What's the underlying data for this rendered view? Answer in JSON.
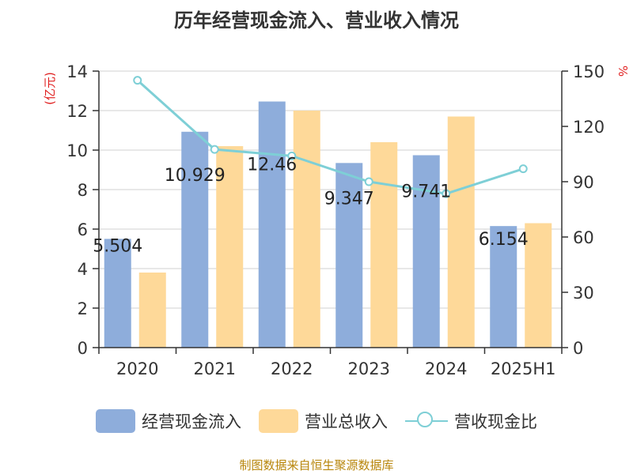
{
  "chart_data": {
    "type": "bar",
    "title": "历年经营现金流入、营业收入情况",
    "categories": [
      "2020",
      "2021",
      "2022",
      "2023",
      "2024",
      "2025H1"
    ],
    "series": [
      {
        "name": "经营现金流入",
        "kind": "bar",
        "axis": "left",
        "color": "#8eaddb",
        "values": [
          5.504,
          10.929,
          12.46,
          9.347,
          9.741,
          6.154
        ],
        "data_labels": [
          "5.504",
          "10.929",
          "12.46",
          "9.347",
          "9.741",
          "6.154"
        ]
      },
      {
        "name": "营业总收入",
        "kind": "bar",
        "axis": "left",
        "color": "#fed999",
        "values": [
          3.8,
          10.2,
          12.0,
          10.4,
          11.7,
          6.3
        ]
      },
      {
        "name": "营收现金比",
        "kind": "line",
        "axis": "right",
        "color": "#7ecfd6",
        "values": [
          145,
          107.5,
          104,
          90,
          83.5,
          97
        ]
      }
    ],
    "y_left": {
      "unit_label": "(亿元)",
      "min": 0,
      "max": 14,
      "ticks": [
        0,
        2,
        4,
        6,
        8,
        10,
        12,
        14
      ]
    },
    "y_right": {
      "unit_label": "%",
      "min": 0,
      "max": 150,
      "ticks": [
        0,
        30,
        60,
        90,
        120,
        150
      ]
    },
    "grid": true,
    "legend_position": "bottom"
  },
  "source_note": "制图数据来自恒生聚源数据库"
}
